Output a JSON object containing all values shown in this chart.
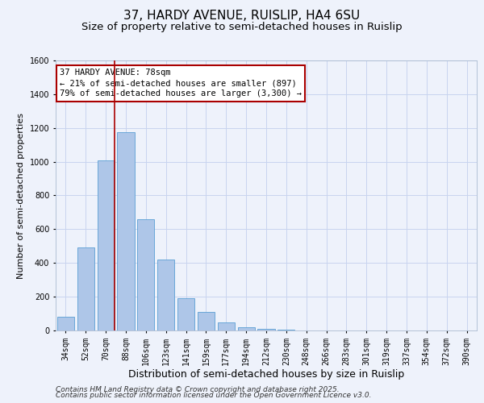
{
  "title1": "37, HARDY AVENUE, RUISLIP, HA4 6SU",
  "title2": "Size of property relative to semi-detached houses in Ruislip",
  "xlabel": "Distribution of semi-detached houses by size in Ruislip",
  "ylabel": "Number of semi-detached properties",
  "categories": [
    "34sqm",
    "52sqm",
    "70sqm",
    "88sqm",
    "106sqm",
    "123sqm",
    "141sqm",
    "159sqm",
    "177sqm",
    "194sqm",
    "212sqm",
    "230sqm",
    "248sqm",
    "266sqm",
    "283sqm",
    "301sqm",
    "319sqm",
    "337sqm",
    "354sqm",
    "372sqm",
    "390sqm"
  ],
  "values": [
    80,
    490,
    1010,
    1175,
    660,
    420,
    190,
    110,
    50,
    20,
    10,
    5,
    0,
    0,
    0,
    0,
    0,
    0,
    0,
    0,
    0
  ],
  "bar_color": "#aec6e8",
  "bar_edge_color": "#5a9fd4",
  "vline_color": "#aa0000",
  "annotation_line1": "37 HARDY AVENUE: 78sqm",
  "annotation_line2": "← 21% of semi-detached houses are smaller (897)",
  "annotation_line3": "79% of semi-detached houses are larger (3,300) →",
  "annotation_box_color": "white",
  "annotation_box_edge": "#aa0000",
  "ylim": [
    0,
    1600
  ],
  "yticks": [
    0,
    200,
    400,
    600,
    800,
    1000,
    1200,
    1400,
    1600
  ],
  "footer1": "Contains HM Land Registry data © Crown copyright and database right 2025.",
  "footer2": "Contains public sector information licensed under the Open Government Licence v3.0.",
  "bg_color": "#eef2fb",
  "grid_color": "#c8d4ef",
  "title1_fontsize": 11,
  "title2_fontsize": 9.5,
  "xlabel_fontsize": 9,
  "ylabel_fontsize": 8,
  "tick_fontsize": 7,
  "annot_fontsize": 7.5,
  "footer_fontsize": 6.5
}
